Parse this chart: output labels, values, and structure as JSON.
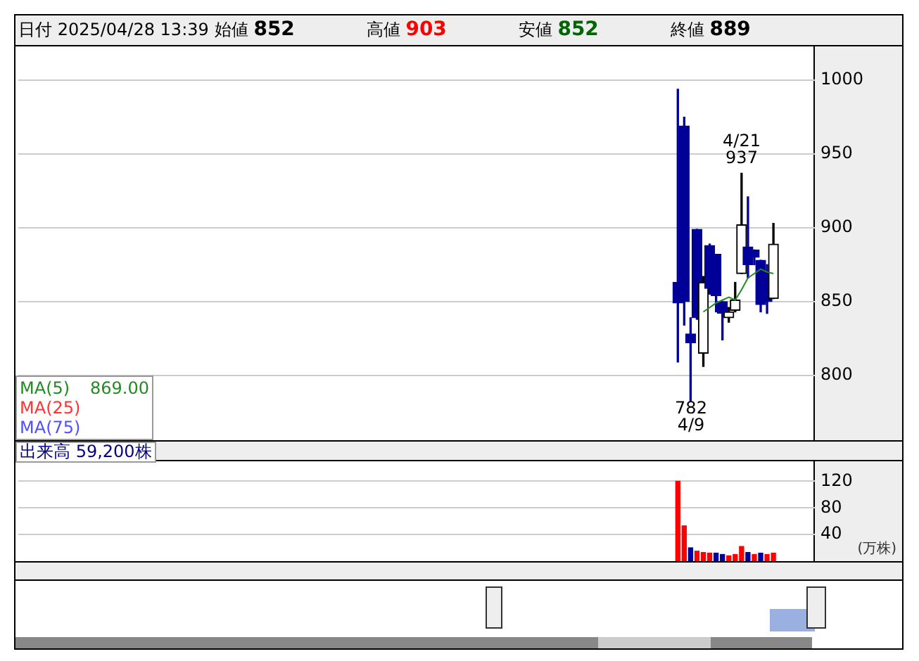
{
  "chart_data": [
    {
      "type": "candlestick",
      "annotations": [
        "日付 2025/04/28 13:39",
        "始値 852",
        "高値 903",
        "安値 852",
        "終値 889",
        "4/21\n937",
        "782\n4/9",
        "869.00"
      ],
      "categories": [
        null,
        null,
        null,
        null,
        null,
        null,
        null,
        null,
        null,
        null,
        null,
        null,
        null,
        null,
        null,
        null,
        null,
        null,
        null,
        null,
        null,
        null,
        null,
        null,
        null,
        null,
        null,
        null,
        null,
        null,
        null,
        null,
        null,
        null,
        null,
        null,
        null,
        null,
        null,
        null,
        null,
        null,
        null,
        null,
        null,
        null,
        null,
        null,
        null,
        null,
        null,
        null,
        null,
        null,
        null,
        null,
        null,
        null,
        null,
        null,
        null,
        null,
        null,
        null,
        null,
        null,
        null,
        null,
        null,
        null,
        null,
        null,
        null,
        null,
        null,
        null,
        null,
        null,
        null,
        null,
        null,
        null,
        null,
        null,
        null,
        null,
        null,
        null,
        null,
        null,
        null,
        null,
        null,
        null,
        null,
        null,
        null,
        null,
        null,
        null,
        null,
        null,
        null,
        null,
        null,
        null,
        null,
        null,
        null,
        null,
        null,
        null,
        null,
        null,
        null,
        null,
        null,
        null,
        null,
        null,
        null,
        null,
        null,
        null,
        null
      ],
      "ohlc": [
        null,
        null,
        null,
        null,
        null,
        null,
        null,
        null,
        null,
        null,
        null,
        null,
        null,
        null,
        null,
        null,
        null,
        null,
        null,
        null,
        null,
        null,
        null,
        null,
        null,
        null,
        null,
        null,
        null,
        null,
        null,
        null,
        null,
        null,
        null,
        null,
        null,
        null,
        null,
        null,
        null,
        null,
        null,
        null,
        null,
        null,
        null,
        null,
        null,
        null,
        null,
        null,
        null,
        null,
        null,
        null,
        null,
        null,
        null,
        null,
        null,
        null,
        null,
        null,
        null,
        null,
        null,
        null,
        null,
        null,
        null,
        null,
        null,
        null,
        null,
        null,
        null,
        null,
        null,
        null,
        null,
        null,
        null,
        null,
        null,
        null,
        null,
        null,
        null,
        null,
        null,
        null,
        null,
        null,
        null,
        null,
        null,
        null,
        null,
        null,
        null,
        null,
        null,
        [
          863,
          994,
          809,
          849
        ],
        [
          969,
          975,
          834,
          850
        ],
        [
          828,
          839,
          782,
          822
        ],
        [
          899,
          899,
          838,
          839
        ],
        [
          815,
          867,
          806,
          863
        ],
        [
          888,
          889,
          855,
          859
        ],
        [
          882,
          882,
          843,
          854
        ],
        [
          850,
          850,
          824,
          842
        ],
        [
          839,
          846,
          836,
          843
        ],
        [
          844,
          863,
          843,
          851
        ],
        [
          869,
          937,
          869,
          902
        ],
        [
          887,
          921,
          866,
          875
        ],
        [
          885,
          885,
          875,
          880
        ],
        [
          878,
          878,
          843,
          848
        ],
        [
          870,
          875,
          842,
          850
        ],
        [
          852,
          903,
          852,
          889
        ],
        null,
        null,
        null,
        null,
        null,
        null
      ],
      "series": [
        {
          "name": "MA(5)",
          "type": "line",
          "color": "#228b22",
          "values": [
            null,
            null,
            null,
            null,
            null,
            null,
            null,
            null,
            null,
            null,
            null,
            null,
            null,
            null,
            null,
            null,
            null,
            null,
            null,
            null,
            null,
            null,
            null,
            null,
            null,
            null,
            null,
            null,
            null,
            null,
            null,
            null,
            null,
            null,
            null,
            null,
            null,
            null,
            null,
            null,
            null,
            null,
            null,
            null,
            null,
            null,
            null,
            null,
            null,
            null,
            null,
            null,
            null,
            null,
            null,
            null,
            null,
            null,
            null,
            null,
            null,
            null,
            null,
            null,
            null,
            null,
            null,
            null,
            null,
            null,
            null,
            null,
            null,
            null,
            null,
            null,
            null,
            null,
            null,
            null,
            null,
            null,
            null,
            null,
            null,
            null,
            null,
            null,
            null,
            null,
            null,
            null,
            null,
            null,
            null,
            null,
            null,
            null,
            null,
            null,
            null,
            null,
            null,
            null,
            null,
            null,
            null,
            843,
            846,
            849,
            851,
            853,
            851,
            858,
            866,
            869,
            872,
            870,
            869,
            null,
            null,
            null,
            null,
            null,
            null
          ]
        },
        {
          "name": "MA(25)",
          "type": "line",
          "color": "#ff3333",
          "values": [
            null,
            null,
            null,
            null,
            null,
            null,
            null,
            null,
            null,
            null,
            null,
            null,
            null,
            null,
            null,
            null,
            null,
            null,
            null,
            null,
            null,
            null,
            null,
            null,
            null,
            null,
            null,
            null,
            null,
            null,
            null,
            null,
            null,
            null,
            null,
            null,
            null,
            null,
            null,
            null,
            null,
            null,
            null,
            null,
            null,
            null,
            null,
            null,
            null,
            null,
            null,
            null,
            null,
            null,
            null,
            null,
            null,
            null,
            null,
            null,
            null,
            null,
            null,
            null,
            null,
            null,
            null,
            null,
            null,
            null,
            null,
            null,
            null,
            null,
            null,
            null,
            null,
            null,
            null,
            null,
            null,
            null,
            null,
            null,
            null,
            null,
            null,
            null,
            null,
            null,
            null,
            null,
            null,
            null,
            null,
            null,
            null,
            null,
            null,
            null,
            null,
            null,
            null,
            null,
            null,
            null,
            null,
            null,
            null,
            null,
            null,
            null,
            null,
            null,
            null,
            null,
            null,
            null,
            null,
            null,
            null,
            null,
            null,
            null,
            null
          ]
        },
        {
          "name": "MA(75)",
          "type": "line",
          "color": "#5050ff",
          "values": [
            null,
            null,
            null,
            null,
            null,
            null,
            null,
            null,
            null,
            null,
            null,
            null,
            null,
            null,
            null,
            null,
            null,
            null,
            null,
            null,
            null,
            null,
            null,
            null,
            null,
            null,
            null,
            null,
            null,
            null,
            null,
            null,
            null,
            null,
            null,
            null,
            null,
            null,
            null,
            null,
            null,
            null,
            null,
            null,
            null,
            null,
            null,
            null,
            null,
            null,
            null,
            null,
            null,
            null,
            null,
            null,
            null,
            null,
            null,
            null,
            null,
            null,
            null,
            null,
            null,
            null,
            null,
            null,
            null,
            null,
            null,
            null,
            null,
            null,
            null,
            null,
            null,
            null,
            null,
            null,
            null,
            null,
            null,
            null,
            null,
            null,
            null,
            null,
            null,
            null,
            null,
            null,
            null,
            null,
            null,
            null,
            null,
            null,
            null,
            null,
            null,
            null,
            null,
            null,
            null,
            null,
            null,
            null,
            null,
            null,
            null,
            null,
            null,
            null,
            null,
            null,
            null,
            null,
            null,
            null,
            null,
            null,
            null,
            null,
            null
          ]
        }
      ],
      "ylim": [
        756,
        1023
      ],
      "yticks": [
        800,
        850,
        900,
        950,
        1000
      ],
      "grid": "y",
      "legend": "bottom left",
      "marker": "none",
      "tick_labels": "y"
    },
    {
      "type": "bar",
      "annotations": [
        "出来高 59,200株"
      ],
      "ylabel": "(万株)",
      "categories": [
        null,
        null,
        null,
        null,
        null,
        null,
        null,
        null,
        null,
        null,
        null,
        null,
        null,
        null,
        null,
        null,
        null,
        null,
        null,
        null,
        null,
        null,
        null,
        null,
        null,
        null,
        null,
        null,
        null,
        null,
        null,
        null,
        null,
        null,
        null,
        null,
        null,
        null,
        null,
        null,
        null,
        null,
        null,
        null,
        null,
        null,
        null,
        null,
        null,
        null,
        null,
        null,
        null,
        null,
        null,
        null,
        null,
        null,
        null,
        null,
        null,
        null,
        null,
        null,
        null,
        null,
        null,
        null,
        null,
        null,
        null,
        null,
        null,
        null,
        null,
        null,
        null,
        null,
        null,
        null,
        null,
        null,
        null,
        null,
        null,
        null,
        null,
        null,
        null,
        null,
        null,
        null,
        null,
        null,
        null,
        null,
        null,
        null,
        null,
        null,
        null,
        null,
        null,
        null,
        null,
        null,
        null,
        null,
        null,
        null,
        null,
        null,
        null,
        null,
        null,
        null,
        null,
        null,
        null,
        null,
        null,
        null,
        null,
        null,
        null
      ],
      "values": [
        null,
        null,
        null,
        null,
        null,
        null,
        null,
        null,
        null,
        null,
        null,
        null,
        null,
        null,
        null,
        null,
        null,
        null,
        null,
        null,
        null,
        null,
        null,
        null,
        null,
        null,
        null,
        null,
        null,
        null,
        null,
        null,
        null,
        null,
        null,
        null,
        null,
        null,
        null,
        null,
        null,
        null,
        null,
        null,
        null,
        null,
        null,
        null,
        null,
        null,
        null,
        null,
        null,
        null,
        null,
        null,
        null,
        null,
        null,
        null,
        null,
        null,
        null,
        null,
        null,
        null,
        null,
        null,
        null,
        null,
        null,
        null,
        null,
        null,
        null,
        null,
        null,
        null,
        null,
        null,
        null,
        null,
        null,
        null,
        null,
        null,
        null,
        null,
        null,
        null,
        null,
        null,
        null,
        null,
        null,
        null,
        null,
        null,
        null,
        null,
        null,
        null,
        null,
        120,
        53,
        20,
        15,
        13,
        12,
        12,
        10,
        8,
        10,
        22,
        13,
        10,
        12,
        10,
        12,
        null,
        null,
        null,
        null,
        null,
        null
      ],
      "colors": [
        null,
        null,
        null,
        null,
        null,
        null,
        null,
        null,
        null,
        null,
        null,
        null,
        null,
        null,
        null,
        null,
        null,
        null,
        null,
        null,
        null,
        null,
        null,
        null,
        null,
        null,
        null,
        null,
        null,
        null,
        null,
        null,
        null,
        null,
        null,
        null,
        null,
        null,
        null,
        null,
        null,
        null,
        null,
        null,
        null,
        null,
        null,
        null,
        null,
        null,
        null,
        null,
        null,
        null,
        null,
        null,
        null,
        null,
        null,
        null,
        null,
        null,
        null,
        null,
        null,
        null,
        null,
        null,
        null,
        null,
        null,
        null,
        null,
        null,
        null,
        null,
        null,
        null,
        null,
        null,
        null,
        null,
        null,
        null,
        null,
        null,
        null,
        null,
        null,
        null,
        null,
        null,
        null,
        null,
        null,
        null,
        null,
        null,
        null,
        null,
        null,
        null,
        null,
        "#ff0000",
        "#ff0000",
        "#000099",
        "#ff0000",
        "#ff0000",
        "#ff0000",
        "#000099",
        "#000099",
        "#ff0000",
        "#ff0000",
        "#ff0000",
        "#000099",
        "#ff0000",
        "#000099",
        "#ff0000",
        "#ff0000",
        null,
        null,
        null,
        null,
        null,
        null
      ],
      "ylim": [
        0,
        150
      ],
      "yticks": [
        40,
        80,
        120
      ],
      "grid": "y",
      "tick_labels": "y"
    }
  ]
}
